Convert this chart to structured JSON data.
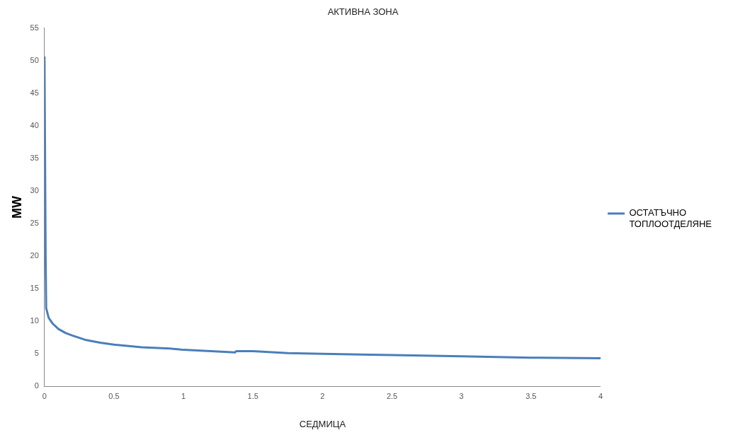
{
  "chart_data": {
    "type": "line",
    "title": "АКТИВНА ЗОНА",
    "xlabel": "СЕДМИЦА",
    "ylabel": "MW",
    "series": [
      {
        "name": "ОСТАТЪЧНО ТОПЛООТДЕЛЯНЕ",
        "color": "#4a7ebb",
        "x": [
          0,
          0.004,
          0.008,
          0.012,
          0.03,
          0.06,
          0.1,
          0.15,
          0.2,
          0.3,
          0.4,
          0.5,
          0.7,
          0.9,
          1,
          1.2,
          1.37,
          1.38,
          1.5,
          1.75,
          2,
          2.5,
          3,
          3.5,
          4
        ],
        "values": [
          50.5,
          35,
          20,
          12,
          10.5,
          9.6,
          8.8,
          8.2,
          7.8,
          7.1,
          6.7,
          6.4,
          6,
          5.8,
          5.6,
          5.4,
          5.2,
          5.4,
          5.4,
          5.1,
          5,
          4.8,
          4.6,
          4.4,
          4.3
        ]
      }
    ],
    "xlim": [
      0,
      4
    ],
    "xticks": [
      0,
      0.5,
      1,
      1.5,
      2,
      2.5,
      3,
      3.5,
      4
    ],
    "ylim": [
      0,
      55
    ],
    "yticks": [
      0,
      5,
      10,
      15,
      20,
      25,
      30,
      35,
      40,
      45,
      50,
      55
    ],
    "grid": false,
    "legend": "right",
    "marker": "none",
    "line_style": "solid"
  }
}
